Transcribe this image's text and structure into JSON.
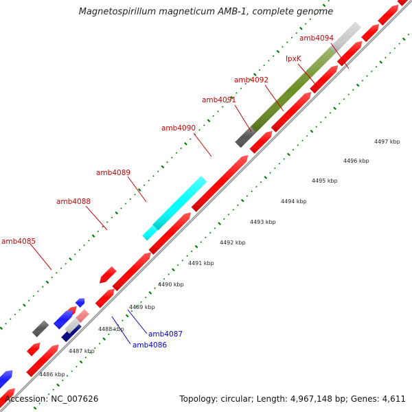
{
  "title": "Magnetospirillum magneticum AMB-1, complete genome",
  "footer": {
    "accession": "Accession: NC_007626",
    "summary": "Topology: circular; Length: 4,967,148 bp; Genes: 4,611"
  },
  "colors": {
    "gene_label_red": "#cc0000",
    "gene_label_blue": "#0000cc",
    "cds_red": "#ff0000",
    "cds_blue": "#1a1aff",
    "cds_navy": "#000080",
    "cds_cyan": "#00ffff",
    "cds_olive": "#6b8e23",
    "cds_gray": "#555555",
    "cds_lightgray": "#cccccc",
    "cds_pink": "#f08080",
    "tick_green": "#008000",
    "backbone": "#888888"
  },
  "scale_labels": [
    "4486 kbp",
    "4487 kbp",
    "4488 kbp",
    "4489 kbp",
    "4490 kbp",
    "4491 kbp",
    "4492 kbp",
    "4493 kbp",
    "4494 kbp",
    "4495 kbp",
    "4496 kbp",
    "4497 kbp"
  ],
  "gene_labels": [
    {
      "text": "amb4085",
      "color": "red"
    },
    {
      "text": "amb4088",
      "color": "red"
    },
    {
      "text": "amb4089",
      "color": "red"
    },
    {
      "text": "amb4090",
      "color": "red"
    },
    {
      "text": "amb4091",
      "color": "red"
    },
    {
      "text": "amb4092",
      "color": "red"
    },
    {
      "text": "lpxK",
      "color": "red"
    },
    {
      "text": "amb4094",
      "color": "red"
    },
    {
      "text": "amb4087",
      "color": "blue"
    },
    {
      "text": "amb4086",
      "color": "blue"
    }
  ]
}
